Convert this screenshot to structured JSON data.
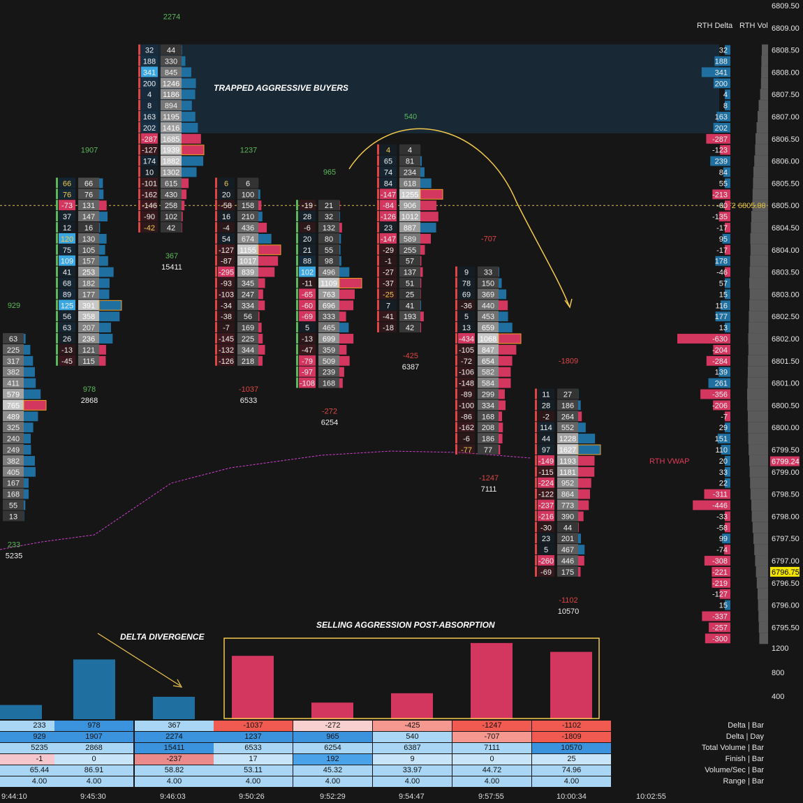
{
  "chart_data": {
    "type": "footprint",
    "price_axis": {
      "min": 6795.5,
      "max": 6809.5,
      "tick": 0.25,
      "labels": [
        "6809.50",
        "6809.00",
        "6808.50",
        "6808.00",
        "6807.50",
        "6807.00",
        "6806.50",
        "6806.00",
        "6805.50",
        "6805.00",
        "6804.50",
        "6804.00",
        "6803.50",
        "6803.00",
        "6802.50",
        "6802.00",
        "6801.50",
        "6801.00",
        "6800.50",
        "6800.00",
        "6799.50",
        "6799.00",
        "6798.50",
        "6798.00",
        "6797.50",
        "6797.00",
        "6796.50",
        "6796.00",
        "6795.50"
      ],
      "current_price": "6796.75",
      "vwap_price": "6799.24",
      "level_price": "6805.00",
      "level_label": "UT2 6805.00"
    },
    "headers": {
      "rth_delta": "RTH Delta",
      "rth_vol": "RTH Vol"
    },
    "volume_axis": [
      "1200",
      "800",
      "400"
    ],
    "bars": [
      {
        "time": "9:44:10",
        "top": 6802.0,
        "delta_top": "233",
        "vol_top": "5235",
        "hdr": "929",
        "rows": [
          [
            null,
            "63"
          ],
          [
            null,
            "225"
          ],
          [
            null,
            "317"
          ],
          [
            null,
            "382"
          ],
          [
            null,
            "411"
          ],
          [
            null,
            "579"
          ],
          [
            null,
            "765"
          ],
          [
            null,
            "489"
          ],
          [
            null,
            "325"
          ],
          [
            null,
            "240"
          ],
          [
            null,
            "249"
          ],
          [
            null,
            "382"
          ],
          [
            null,
            "405"
          ],
          [
            null,
            "167"
          ],
          [
            null,
            "168"
          ],
          [
            null,
            "55"
          ],
          [
            null,
            "13"
          ]
        ]
      },
      {
        "time": "9:45:30",
        "top": 6805.5,
        "delta_top": "978",
        "vol_top": "2868",
        "hdr": "1907",
        "rows": [
          [
            "66",
            "66"
          ],
          [
            "76",
            "76"
          ],
          [
            "-73",
            "131"
          ],
          [
            "37",
            "147"
          ],
          [
            "12",
            "16"
          ],
          [
            "120",
            "130"
          ],
          [
            "75",
            "105"
          ],
          [
            "109",
            "157"
          ],
          [
            "41",
            "253"
          ],
          [
            "68",
            "182"
          ],
          [
            "89",
            "177"
          ],
          [
            "125",
            "391"
          ],
          [
            "56",
            "358"
          ],
          [
            "63",
            "207"
          ],
          [
            "26",
            "236"
          ],
          [
            "-13",
            "121"
          ],
          [
            "-45",
            "115"
          ]
        ]
      },
      {
        "time": "9:46:03",
        "top": 6808.5,
        "delta_top": "367",
        "vol_top": "15411",
        "hdr": "2274",
        "rows": [
          [
            "32",
            "44"
          ],
          [
            "188",
            "330"
          ],
          [
            "341",
            "845"
          ],
          [
            "200",
            "1246"
          ],
          [
            "4",
            "1186"
          ],
          [
            "8",
            "894"
          ],
          [
            "163",
            "1195"
          ],
          [
            "202",
            "1416"
          ],
          [
            "-287",
            "1685"
          ],
          [
            "-127",
            "1939"
          ],
          [
            "174",
            "1882"
          ],
          [
            "10",
            "1302"
          ],
          [
            "-101",
            "615"
          ],
          [
            "-162",
            "430"
          ],
          [
            "-146",
            "258"
          ],
          [
            "-90",
            "102"
          ],
          [
            "-42",
            "42"
          ]
        ]
      },
      {
        "time": "9:50:26",
        "top": 6805.5,
        "delta_top": "-1037",
        "vol_top": "6533",
        "hdr": "1237",
        "rows": [
          [
            "6",
            "6"
          ],
          [
            "20",
            "100"
          ],
          [
            "-58",
            "158"
          ],
          [
            "16",
            "210"
          ],
          [
            "-4",
            "436"
          ],
          [
            "54",
            "674"
          ],
          [
            "-127",
            "1155"
          ],
          [
            "-87",
            "1017"
          ],
          [
            "-295",
            "839"
          ],
          [
            "-93",
            "345"
          ],
          [
            "-103",
            "247"
          ],
          [
            "-34",
            "334"
          ],
          [
            "-38",
            "56"
          ],
          [
            "-7",
            "169"
          ],
          [
            "-145",
            "225"
          ],
          [
            "-132",
            "344"
          ],
          [
            "-126",
            "218"
          ]
        ]
      },
      {
        "time": "9:52:29",
        "top": 6805.0,
        "delta_top": "-272",
        "vol_top": "6254",
        "hdr": "965",
        "rows": [
          [
            "-19",
            "21"
          ],
          [
            "28",
            "32"
          ],
          [
            "-6",
            "132"
          ],
          [
            "20",
            "80"
          ],
          [
            "21",
            "55"
          ],
          [
            "88",
            "98"
          ],
          [
            "102",
            "496"
          ],
          [
            "-11",
            "1109"
          ],
          [
            "-65",
            "763"
          ],
          [
            "-60",
            "696"
          ],
          [
            "-69",
            "333"
          ],
          [
            "5",
            "465"
          ],
          [
            "-13",
            "699"
          ],
          [
            "-47",
            "359"
          ],
          [
            "-79",
            "509"
          ],
          [
            "-97",
            "239"
          ],
          [
            "-108",
            "168"
          ]
        ]
      },
      {
        "time": "9:54:47",
        "top": 6806.25,
        "delta_top": "-425",
        "vol_top": "6387",
        "hdr": "540",
        "rows": [
          [
            "4",
            "4"
          ],
          [
            "65",
            "81"
          ],
          [
            "74",
            "234"
          ],
          [
            "84",
            "618"
          ],
          [
            "-147",
            "1255"
          ],
          [
            "-84",
            "906"
          ],
          [
            "-126",
            "1012"
          ],
          [
            "23",
            "887"
          ],
          [
            "-147",
            "589"
          ],
          [
            "-29",
            "255"
          ],
          [
            "-1",
            "57"
          ],
          [
            "-27",
            "137"
          ],
          [
            "-37",
            "51"
          ],
          [
            "-25",
            "25"
          ],
          [
            "7",
            "41"
          ],
          [
            "-41",
            "193"
          ],
          [
            "-18",
            "42"
          ]
        ]
      },
      {
        "time": "9:57:55",
        "top": 6803.5,
        "delta_top": "-1247",
        "vol_top": "7111",
        "hdr": "-707",
        "rows": [
          [
            "9",
            "33"
          ],
          [
            "78",
            "150"
          ],
          [
            "69",
            "369"
          ],
          [
            "-36",
            "440"
          ],
          [
            "5",
            "453"
          ],
          [
            "13",
            "659"
          ],
          [
            "-434",
            "1068"
          ],
          [
            "-105",
            "847"
          ],
          [
            "-72",
            "654"
          ],
          [
            "-106",
            "582"
          ],
          [
            "-148",
            "584"
          ],
          [
            "-89",
            "299"
          ],
          [
            "-100",
            "334"
          ],
          [
            "-86",
            "168"
          ],
          [
            "-162",
            "208"
          ],
          [
            "-6",
            "186"
          ],
          [
            "-77",
            "77"
          ]
        ]
      },
      {
        "time": "10:00:34",
        "top": 6800.75,
        "delta_top": "-1102",
        "vol_top": "10570",
        "hdr": "-1809",
        "rows": [
          [
            "11",
            "27"
          ],
          [
            "28",
            "186"
          ],
          [
            "-2",
            "264"
          ],
          [
            "114",
            "552"
          ],
          [
            "44",
            "1228"
          ],
          [
            "97",
            "1627"
          ],
          [
            "-149",
            "1193"
          ],
          [
            "-115",
            "1181"
          ],
          [
            "-224",
            "952"
          ],
          [
            "-122",
            "864"
          ],
          [
            "-237",
            "773"
          ],
          [
            "-216",
            "390"
          ],
          [
            "-30",
            "44"
          ],
          [
            "23",
            "201"
          ],
          [
            "5",
            "467"
          ],
          [
            "-260",
            "446"
          ],
          [
            "-69",
            "175"
          ]
        ]
      }
    ],
    "extra_time": "10:02:55",
    "rth_delta": [
      [
        "6808.50",
        "32"
      ],
      [
        "6808.25",
        "188"
      ],
      [
        "6808.00",
        "341"
      ],
      [
        "6807.75",
        "200"
      ],
      [
        "6807.50",
        "4"
      ],
      [
        "6807.25",
        "8"
      ],
      [
        "6807.00",
        "163"
      ],
      [
        "6806.75",
        "202"
      ],
      [
        "6806.50",
        "-287"
      ],
      [
        "6806.25",
        "-123"
      ],
      [
        "6806.00",
        "239"
      ],
      [
        "6805.75",
        "84"
      ],
      [
        "6805.50",
        "55"
      ],
      [
        "6805.25",
        "-213"
      ],
      [
        "6805.00",
        "-60"
      ],
      [
        "6804.75",
        "-135"
      ],
      [
        "6804.50",
        "-17"
      ],
      [
        "6804.25",
        "95"
      ],
      [
        "6804.00",
        "-17"
      ],
      [
        "6803.75",
        "178"
      ],
      [
        "6803.50",
        "-46"
      ],
      [
        "6803.25",
        "57"
      ],
      [
        "6803.00",
        "15"
      ],
      [
        "6802.75",
        "116"
      ],
      [
        "6802.50",
        "177"
      ],
      [
        "6802.25",
        "13"
      ],
      [
        "6802.00",
        "-630"
      ],
      [
        "6801.75",
        "-204"
      ],
      [
        "6801.50",
        "-284"
      ],
      [
        "6801.25",
        "139"
      ],
      [
        "6801.00",
        "261"
      ],
      [
        "6800.75",
        "-356"
      ],
      [
        "6800.50",
        "-206"
      ],
      [
        "6800.25",
        "-7"
      ],
      [
        "6800.00",
        "29"
      ],
      [
        "6799.75",
        "151"
      ],
      [
        "6799.50",
        "110"
      ],
      [
        "6799.25",
        "20"
      ],
      [
        "6799.00",
        "33"
      ],
      [
        "6798.75",
        "22"
      ],
      [
        "6798.50",
        "-311"
      ],
      [
        "6798.25",
        "-446"
      ],
      [
        "6798.00",
        "-33"
      ],
      [
        "6797.75",
        "-58"
      ],
      [
        "6797.50",
        "99"
      ],
      [
        "6797.25",
        "-74"
      ],
      [
        "6797.00",
        "-308"
      ],
      [
        "6796.75",
        "-221"
      ],
      [
        "6796.50",
        "-219"
      ],
      [
        "6796.25",
        "-127"
      ],
      [
        "6796.00",
        "15"
      ],
      [
        "6795.75",
        "-337"
      ],
      [
        "6795.50",
        "-257"
      ],
      [
        "6795.25",
        "-300"
      ]
    ],
    "rth_vol_profile": [
      0.3,
      0.32,
      0.33,
      0.34,
      0.38,
      0.45,
      0.5,
      0.55,
      0.6,
      0.62,
      0.66,
      0.7,
      0.72,
      0.74,
      0.75,
      0.8,
      0.82,
      0.85,
      0.84,
      0.86,
      0.88,
      0.9,
      0.88,
      0.9,
      0.92,
      0.93,
      0.95,
      0.94,
      0.96,
      0.97,
      0.98,
      1.0,
      0.99,
      0.97,
      0.96,
      0.95,
      0.93,
      0.9,
      0.88,
      0.86,
      0.84,
      0.8,
      0.78,
      0.74,
      0.7,
      0.66,
      0.62,
      0.58,
      0.54,
      0.5,
      0.48,
      0.46,
      0.44,
      0.42
    ],
    "delta_bars": [
      233,
      978,
      367,
      -1037,
      -272,
      -425,
      -1247,
      -1102
    ],
    "annotations": {
      "trapped": "TRAPPED AGGRESSIVE BUYERS",
      "delta_div": "DELTA DIVERGENCE",
      "selling": "SELLING AGGRESSION POST-ABSORPTION",
      "rth_vwap": "RTH VWAP"
    },
    "footer": {
      "labels": [
        "Delta | Bar",
        "Delta | Day",
        "Total Volume | Bar",
        "Finish | Bar",
        "Volume/Sec | Bar",
        "Range | Bar"
      ],
      "rows": [
        [
          "233",
          "978",
          "367",
          "-1037",
          "-272",
          "-425",
          "-1247",
          "-1102"
        ],
        [
          "929",
          "1907",
          "2274",
          "1237",
          "965",
          "540",
          "-707",
          "-1809"
        ],
        [
          "5235",
          "2868",
          "15411",
          "6533",
          "6254",
          "6387",
          "7111",
          "10570"
        ],
        [
          "-1",
          "0",
          "-237",
          "17",
          "192",
          "9",
          "0",
          "25"
        ],
        [
          "65.44",
          "86.91",
          "58.82",
          "53.11",
          "45.32",
          "33.97",
          "44.72",
          "74.96"
        ],
        [
          "4.00",
          "4.00",
          "4.00",
          "4.00",
          "4.00",
          "4.00",
          "4.00",
          "4.00"
        ]
      ]
    },
    "colors": {
      "buy": "#1f6fa0",
      "sell": "#d3365f",
      "bg": "#161616",
      "green": "#5cb85c",
      "yellow": "#f2c94c",
      "vwap": "#d63fd6"
    }
  }
}
